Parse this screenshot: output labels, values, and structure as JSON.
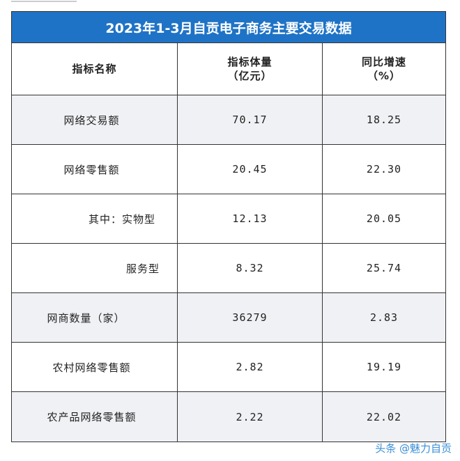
{
  "table": {
    "title": "2023年1-3月自贡电子商务主要交易数据",
    "columns": [
      "指标名称",
      "指标体量\n（亿元）",
      "同比增速\n（%）"
    ],
    "rows": [
      [
        "网络交易额",
        "70.17",
        "18.25"
      ],
      [
        "网络零售额",
        "20.45",
        "22.30"
      ],
      [
        "其中：实物型",
        "12.13",
        "20.05"
      ],
      [
        "服务型",
        "8.32",
        "25.74"
      ],
      [
        "网商数量（家）",
        "36279",
        "2.83"
      ],
      [
        "农村网络零售额",
        "2.82",
        "19.19"
      ],
      [
        "农产品网络零售额",
        "2.22",
        "22.02"
      ]
    ]
  },
  "watermark": "头条 @魅力自贡"
}
